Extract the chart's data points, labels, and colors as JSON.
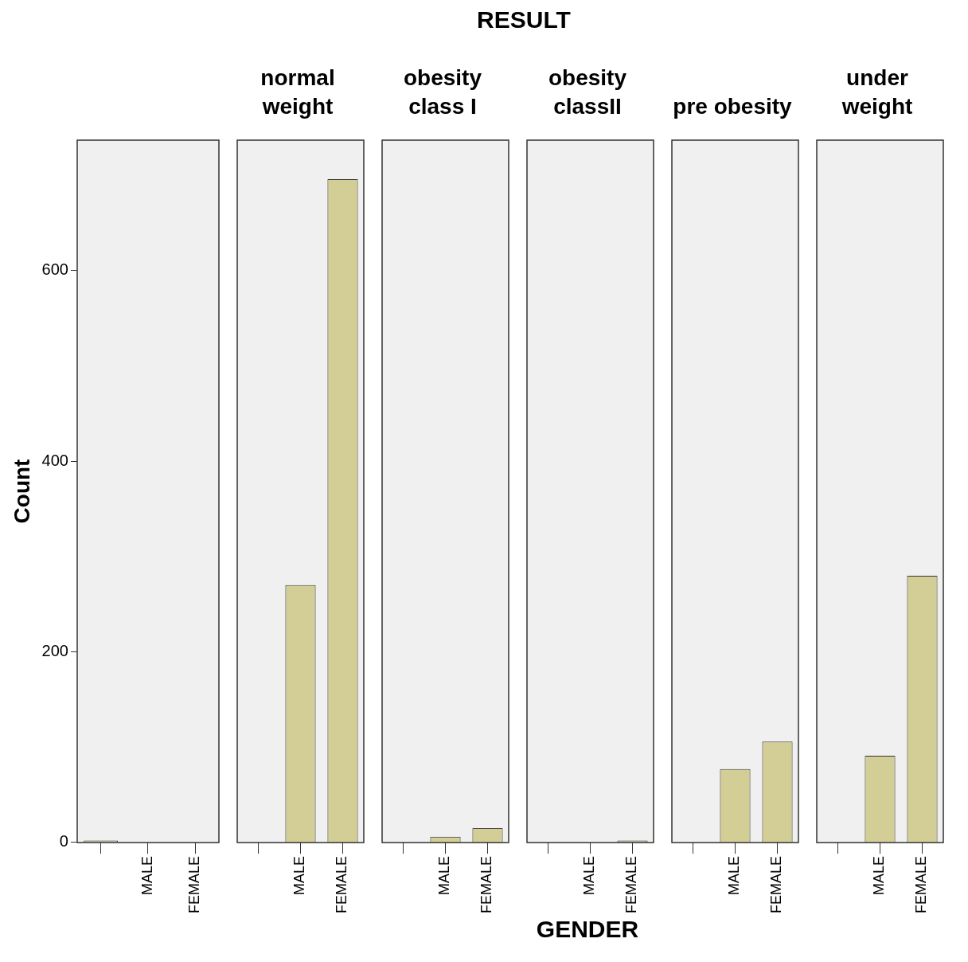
{
  "chart_data": [
    {
      "type": "bar",
      "title": null,
      "ylabel": "Count",
      "annotations": [
        "RESULT"
      ],
      "categories": [
        null,
        "MALE",
        "FEMALE"
      ],
      "values": [
        2,
        0,
        0
      ],
      "color": "#d3cd96",
      "ylim": [
        0,
        737
      ],
      "yticks": [
        0,
        200,
        400,
        600
      ],
      "grid": false
    },
    {
      "type": "bar",
      "title": "normal\nweight",
      "categories": [
        null,
        "MALE",
        "FEMALE"
      ],
      "values": [
        0,
        270,
        696
      ],
      "color": "#d3cd96",
      "ylim": [
        0,
        737
      ],
      "tick_labels": "x",
      "grid": false
    },
    {
      "type": "bar",
      "title": "obesity\nclass I",
      "categories": [
        null,
        "MALE",
        "FEMALE"
      ],
      "values": [
        0,
        6,
        15
      ],
      "color": "#d3cd96",
      "ylim": [
        0,
        737
      ],
      "tick_labels": "x",
      "grid": false
    },
    {
      "type": "bar",
      "title": "obesity\nclassII",
      "xlabel": "GENDER",
      "categories": [
        null,
        "MALE",
        "FEMALE"
      ],
      "values": [
        0,
        0,
        2
      ],
      "color": "#d3cd96",
      "ylim": [
        0,
        737
      ],
      "tick_labels": "x",
      "grid": false
    },
    {
      "type": "bar",
      "title": "pre obesity",
      "categories": [
        null,
        "MALE",
        "FEMALE"
      ],
      "values": [
        0,
        77,
        106
      ],
      "color": "#d3cd96",
      "ylim": [
        0,
        737
      ],
      "tick_labels": "x",
      "grid": false
    },
    {
      "type": "bar",
      "title": "under\nweight",
      "categories": [
        null,
        "MALE",
        "FEMALE"
      ],
      "values": [
        0,
        91,
        280
      ],
      "color": "#d3cd96",
      "ylim": [
        0,
        737
      ],
      "tick_labels": "x",
      "grid": false
    }
  ]
}
